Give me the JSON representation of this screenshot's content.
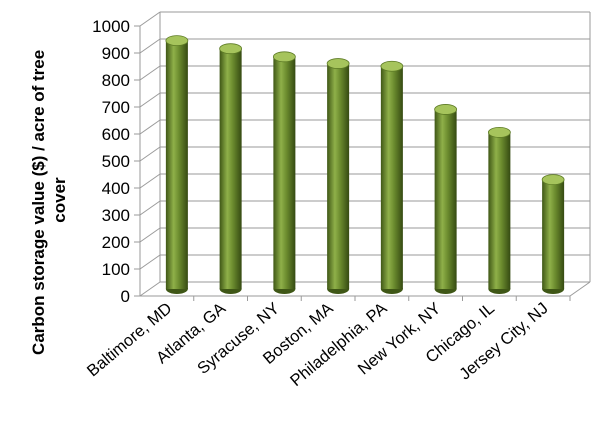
{
  "chart_data": {
    "type": "bar",
    "title": "",
    "xlabel": "",
    "ylabel": "Carbon storage value ($) / acre of tree cover",
    "ylabel_lines": [
      "Carbon storage value ($) / acre of tree",
      "cover"
    ],
    "categories": [
      "Baltimore, MD",
      "Atlanta, GA",
      "Syracuse, NY",
      "Boston, MA",
      "Philadelphia, PA",
      "New York, NY",
      "Chicago, IL",
      "Jersey City, NJ"
    ],
    "values": [
      920,
      890,
      860,
      835,
      825,
      665,
      580,
      405
    ],
    "ylim": [
      0,
      1000
    ],
    "yticks": [
      "0",
      "100",
      "200",
      "300",
      "400",
      "500",
      "600",
      "700",
      "800",
      "900",
      "1000"
    ],
    "grid": true,
    "style": "3d-cylinder",
    "colors": {
      "bar": "#6b8b2e",
      "bar_dark": "#3f5716",
      "bar_light": "#a6c45c",
      "grid": "#9a9a9a"
    }
  }
}
